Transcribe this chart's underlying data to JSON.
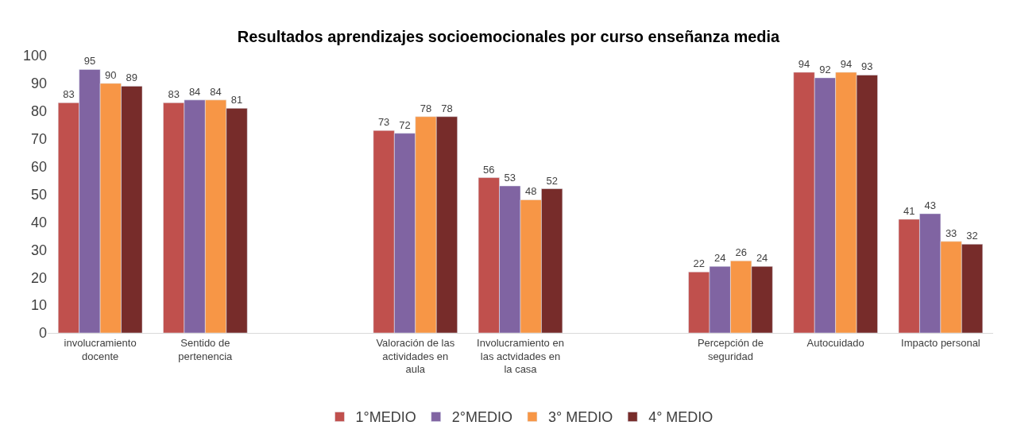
{
  "chart_data": {
    "type": "bar",
    "title": "Resultados aprendizajes socioemocionales por curso enseñanza media",
    "categories": [
      "involucramiento docente",
      "Sentido de pertenencia",
      null,
      "Valoración de las actividades en aula",
      "Involucramiento en las actvidades en la casa",
      null,
      "Percepción de seguridad",
      "Autocuidado",
      "Impacto personal"
    ],
    "series": [
      {
        "name": "1°MEDIO",
        "color": "#c0504d",
        "values": [
          83,
          83,
          null,
          73,
          56,
          null,
          22,
          94,
          41
        ]
      },
      {
        "name": "2°MEDIO",
        "color": "#8064a2",
        "values": [
          95,
          84,
          null,
          72,
          53,
          null,
          24,
          92,
          43
        ]
      },
      {
        "name": "3° MEDIO",
        "color": "#f79646",
        "values": [
          90,
          84,
          null,
          78,
          48,
          null,
          26,
          94,
          33
        ]
      },
      {
        "name": "4° MEDIO",
        "color": "#772c2a",
        "values": [
          89,
          81,
          null,
          78,
          52,
          null,
          24,
          93,
          32
        ]
      }
    ],
    "ylim": [
      0,
      100
    ],
    "yticks": [
      0,
      10,
      20,
      30,
      40,
      50,
      60,
      70,
      80,
      90,
      100
    ],
    "data_labels": true,
    "legend": "bottom"
  }
}
